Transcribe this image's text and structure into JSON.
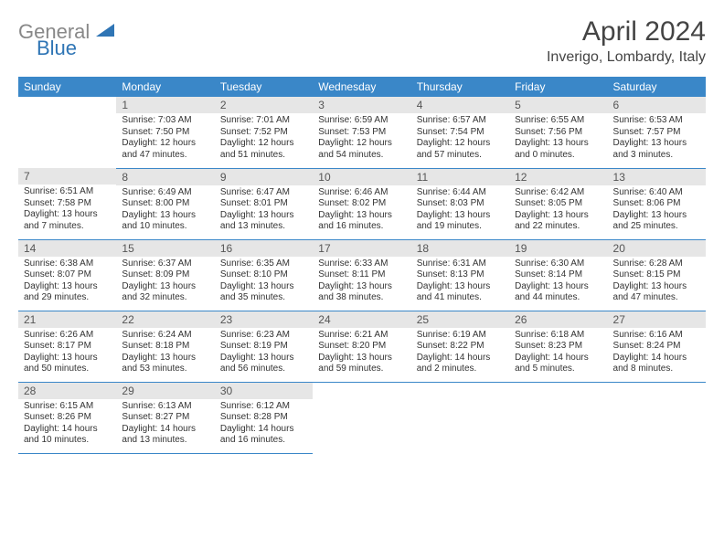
{
  "logo": {
    "word1": "General",
    "word2": "Blue",
    "color1": "#888888",
    "color2": "#2f75b5"
  },
  "title": "April 2024",
  "location": "Inverigo, Lombardy, Italy",
  "colors": {
    "header_bg": "#3a87c8",
    "header_fg": "#ffffff",
    "daynum_bg": "#e6e6e6",
    "daynum_fg": "#555555",
    "border": "#3a87c8",
    "text": "#333333"
  },
  "weekdays": [
    "Sunday",
    "Monday",
    "Tuesday",
    "Wednesday",
    "Thursday",
    "Friday",
    "Saturday"
  ],
  "weeks": [
    [
      null,
      {
        "n": "1",
        "sr": "Sunrise: 7:03 AM",
        "ss": "Sunset: 7:50 PM",
        "dl": "Daylight: 12 hours and 47 minutes."
      },
      {
        "n": "2",
        "sr": "Sunrise: 7:01 AM",
        "ss": "Sunset: 7:52 PM",
        "dl": "Daylight: 12 hours and 51 minutes."
      },
      {
        "n": "3",
        "sr": "Sunrise: 6:59 AM",
        "ss": "Sunset: 7:53 PM",
        "dl": "Daylight: 12 hours and 54 minutes."
      },
      {
        "n": "4",
        "sr": "Sunrise: 6:57 AM",
        "ss": "Sunset: 7:54 PM",
        "dl": "Daylight: 12 hours and 57 minutes."
      },
      {
        "n": "5",
        "sr": "Sunrise: 6:55 AM",
        "ss": "Sunset: 7:56 PM",
        "dl": "Daylight: 13 hours and 0 minutes."
      },
      {
        "n": "6",
        "sr": "Sunrise: 6:53 AM",
        "ss": "Sunset: 7:57 PM",
        "dl": "Daylight: 13 hours and 3 minutes."
      }
    ],
    [
      {
        "n": "7",
        "sr": "Sunrise: 6:51 AM",
        "ss": "Sunset: 7:58 PM",
        "dl": "Daylight: 13 hours and 7 minutes."
      },
      {
        "n": "8",
        "sr": "Sunrise: 6:49 AM",
        "ss": "Sunset: 8:00 PM",
        "dl": "Daylight: 13 hours and 10 minutes."
      },
      {
        "n": "9",
        "sr": "Sunrise: 6:47 AM",
        "ss": "Sunset: 8:01 PM",
        "dl": "Daylight: 13 hours and 13 minutes."
      },
      {
        "n": "10",
        "sr": "Sunrise: 6:46 AM",
        "ss": "Sunset: 8:02 PM",
        "dl": "Daylight: 13 hours and 16 minutes."
      },
      {
        "n": "11",
        "sr": "Sunrise: 6:44 AM",
        "ss": "Sunset: 8:03 PM",
        "dl": "Daylight: 13 hours and 19 minutes."
      },
      {
        "n": "12",
        "sr": "Sunrise: 6:42 AM",
        "ss": "Sunset: 8:05 PM",
        "dl": "Daylight: 13 hours and 22 minutes."
      },
      {
        "n": "13",
        "sr": "Sunrise: 6:40 AM",
        "ss": "Sunset: 8:06 PM",
        "dl": "Daylight: 13 hours and 25 minutes."
      }
    ],
    [
      {
        "n": "14",
        "sr": "Sunrise: 6:38 AM",
        "ss": "Sunset: 8:07 PM",
        "dl": "Daylight: 13 hours and 29 minutes."
      },
      {
        "n": "15",
        "sr": "Sunrise: 6:37 AM",
        "ss": "Sunset: 8:09 PM",
        "dl": "Daylight: 13 hours and 32 minutes."
      },
      {
        "n": "16",
        "sr": "Sunrise: 6:35 AM",
        "ss": "Sunset: 8:10 PM",
        "dl": "Daylight: 13 hours and 35 minutes."
      },
      {
        "n": "17",
        "sr": "Sunrise: 6:33 AM",
        "ss": "Sunset: 8:11 PM",
        "dl": "Daylight: 13 hours and 38 minutes."
      },
      {
        "n": "18",
        "sr": "Sunrise: 6:31 AM",
        "ss": "Sunset: 8:13 PM",
        "dl": "Daylight: 13 hours and 41 minutes."
      },
      {
        "n": "19",
        "sr": "Sunrise: 6:30 AM",
        "ss": "Sunset: 8:14 PM",
        "dl": "Daylight: 13 hours and 44 minutes."
      },
      {
        "n": "20",
        "sr": "Sunrise: 6:28 AM",
        "ss": "Sunset: 8:15 PM",
        "dl": "Daylight: 13 hours and 47 minutes."
      }
    ],
    [
      {
        "n": "21",
        "sr": "Sunrise: 6:26 AM",
        "ss": "Sunset: 8:17 PM",
        "dl": "Daylight: 13 hours and 50 minutes."
      },
      {
        "n": "22",
        "sr": "Sunrise: 6:24 AM",
        "ss": "Sunset: 8:18 PM",
        "dl": "Daylight: 13 hours and 53 minutes."
      },
      {
        "n": "23",
        "sr": "Sunrise: 6:23 AM",
        "ss": "Sunset: 8:19 PM",
        "dl": "Daylight: 13 hours and 56 minutes."
      },
      {
        "n": "24",
        "sr": "Sunrise: 6:21 AM",
        "ss": "Sunset: 8:20 PM",
        "dl": "Daylight: 13 hours and 59 minutes."
      },
      {
        "n": "25",
        "sr": "Sunrise: 6:19 AM",
        "ss": "Sunset: 8:22 PM",
        "dl": "Daylight: 14 hours and 2 minutes."
      },
      {
        "n": "26",
        "sr": "Sunrise: 6:18 AM",
        "ss": "Sunset: 8:23 PM",
        "dl": "Daylight: 14 hours and 5 minutes."
      },
      {
        "n": "27",
        "sr": "Sunrise: 6:16 AM",
        "ss": "Sunset: 8:24 PM",
        "dl": "Daylight: 14 hours and 8 minutes."
      }
    ],
    [
      {
        "n": "28",
        "sr": "Sunrise: 6:15 AM",
        "ss": "Sunset: 8:26 PM",
        "dl": "Daylight: 14 hours and 10 minutes."
      },
      {
        "n": "29",
        "sr": "Sunrise: 6:13 AM",
        "ss": "Sunset: 8:27 PM",
        "dl": "Daylight: 14 hours and 13 minutes."
      },
      {
        "n": "30",
        "sr": "Sunrise: 6:12 AM",
        "ss": "Sunset: 8:28 PM",
        "dl": "Daylight: 14 hours and 16 minutes."
      },
      null,
      null,
      null,
      null
    ]
  ]
}
